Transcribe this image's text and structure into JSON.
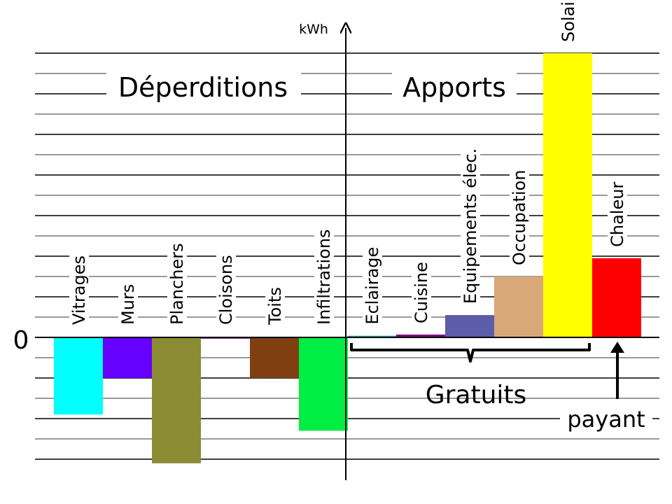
{
  "chart_data": {
    "type": "bar",
    "ylabel": "kWh",
    "zero_label": "0",
    "grid": true,
    "categories": [
      "Vitrages",
      "Murs",
      "Planchers",
      "Cloisons",
      "Toits",
      "Infiltrations",
      "Eclairage",
      "Cuisine",
      "Equipements élec.",
      "Occupation",
      "Solaires",
      "Chaleur"
    ],
    "values": [
      -1.9,
      -1.0,
      -3.1,
      -0.03,
      -1.0,
      -2.3,
      0.04,
      0.07,
      0.55,
      1.5,
      7.0,
      1.95
    ],
    "colors": [
      "#00ffff",
      "#6600ff",
      "#8b8b33",
      "#8833aa",
      "#7f3f11",
      "#00ee44",
      "#2aa0a0",
      "#800080",
      "#5c5ca8",
      "#d8a878",
      "#ffff00",
      "#ff0000"
    ],
    "ylim": [
      -3.2,
      7.4
    ],
    "section_labels": {
      "left": "Déperditions",
      "right": "Apports"
    },
    "annotations": {
      "free": "Gratuits",
      "paid": "payant"
    }
  }
}
